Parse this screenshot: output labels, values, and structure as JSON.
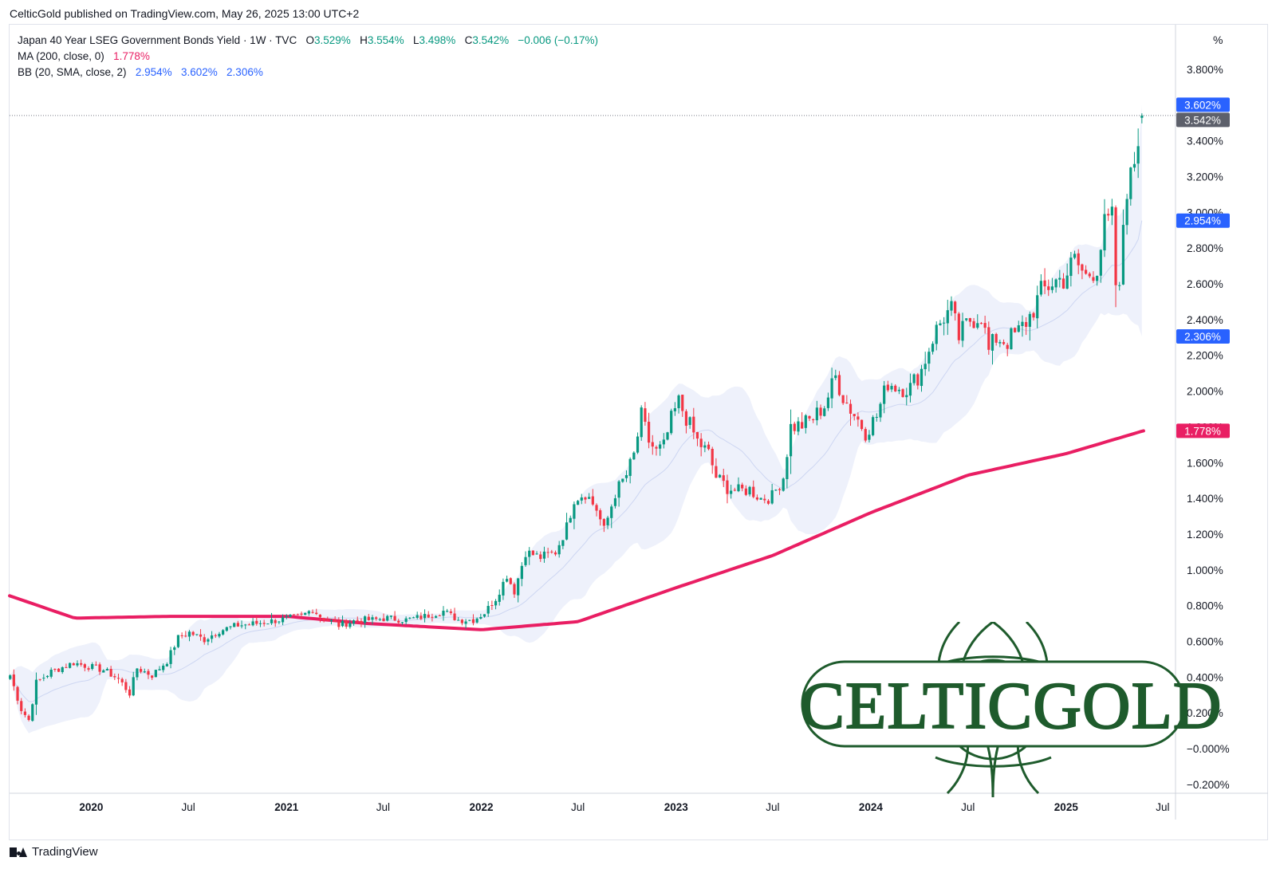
{
  "publisher_line": "CelticGold published on TradingView.com, May 26, 2025 13:00 UTC+2",
  "legend": {
    "title": "Japan 40 Year LSEG Government Bonds Yield · 1W · TVC",
    "open_label": "O",
    "open": "3.529%",
    "high_label": "H",
    "high": "3.554%",
    "low_label": "L",
    "low": "3.498%",
    "close_label": "C",
    "close": "3.542%",
    "change": "−0.006 (−0.17%)",
    "ma_label": "MA (200, close, 0)",
    "ma_value": "1.778%",
    "bb_label": "BB (20, SMA, close, 2)",
    "bb_basis": "2.954%",
    "bb_upper": "3.602%",
    "bb_lower": "2.306%"
  },
  "scale_button": "%",
  "footer_brand": "TradingView",
  "logo_text": "CELTICGOLD",
  "colors": {
    "up": "#089981",
    "down": "#f23645",
    "ma": "#e91e63",
    "bb_fill": "#eef1fb",
    "bb_line": "#cdd6f2",
    "badge_blue": "#2962ff",
    "badge_gray": "#5d606b",
    "badge_pink": "#e91e63",
    "logo_green": "#1e5b2c"
  },
  "chart_data": {
    "type": "candlestick",
    "title": "Japan 40 Year LSEG Government Bonds Yield",
    "interval": "1W",
    "y_unit": "%",
    "ylim": [
      -0.25,
      4.05
    ],
    "x_range": [
      "2019-08-01",
      "2025-07-25"
    ],
    "y_ticks": [
      "3.800%",
      "3.600%",
      "3.400%",
      "3.200%",
      "3.000%",
      "2.800%",
      "2.600%",
      "2.400%",
      "2.200%",
      "2.000%",
      "1.800%",
      "1.600%",
      "1.400%",
      "1.200%",
      "1.000%",
      "0.800%",
      "0.600%",
      "0.400%",
      "0.200%",
      "−0.000%",
      "−0.200%"
    ],
    "x_ticks": [
      {
        "label": "2020",
        "date": "2020-01-01",
        "bold": true
      },
      {
        "label": "Jul",
        "date": "2020-07-01",
        "bold": false
      },
      {
        "label": "2021",
        "date": "2021-01-01",
        "bold": true
      },
      {
        "label": "Jul",
        "date": "2021-07-01",
        "bold": false
      },
      {
        "label": "2022",
        "date": "2022-01-01",
        "bold": true
      },
      {
        "label": "Jul",
        "date": "2022-07-01",
        "bold": false
      },
      {
        "label": "2023",
        "date": "2023-01-01",
        "bold": true
      },
      {
        "label": "Jul",
        "date": "2023-07-01",
        "bold": false
      },
      {
        "label": "2024",
        "date": "2024-01-01",
        "bold": true
      },
      {
        "label": "Jul",
        "date": "2024-07-01",
        "bold": false
      },
      {
        "label": "2025",
        "date": "2025-01-01",
        "bold": true
      },
      {
        "label": "Jul",
        "date": "2025-07-01",
        "bold": false
      }
    ],
    "price_close_anchors": [
      [
        "2019-08-02",
        0.41
      ],
      [
        "2019-08-23",
        0.22
      ],
      [
        "2019-09-06",
        0.16
      ],
      [
        "2019-09-20",
        0.37
      ],
      [
        "2019-10-18",
        0.43
      ],
      [
        "2019-11-29",
        0.48
      ],
      [
        "2019-12-27",
        0.46
      ],
      [
        "2020-01-24",
        0.44
      ],
      [
        "2020-02-21",
        0.39
      ],
      [
        "2020-03-13",
        0.31
      ],
      [
        "2020-03-27",
        0.45
      ],
      [
        "2020-04-24",
        0.41
      ],
      [
        "2020-05-22",
        0.49
      ],
      [
        "2020-06-12",
        0.62
      ],
      [
        "2020-07-03",
        0.65
      ],
      [
        "2020-07-31",
        0.61
      ],
      [
        "2020-08-28",
        0.66
      ],
      [
        "2020-10-02",
        0.69
      ],
      [
        "2020-11-06",
        0.7
      ],
      [
        "2020-12-18",
        0.72
      ],
      [
        "2021-01-29",
        0.74
      ],
      [
        "2021-02-19",
        0.78
      ],
      [
        "2021-03-05",
        0.74
      ],
      [
        "2021-04-09",
        0.69
      ],
      [
        "2021-05-14",
        0.72
      ],
      [
        "2021-06-11",
        0.72
      ],
      [
        "2021-07-09",
        0.73
      ],
      [
        "2021-08-13",
        0.72
      ],
      [
        "2021-09-17",
        0.74
      ],
      [
        "2021-10-22",
        0.77
      ],
      [
        "2021-11-19",
        0.72
      ],
      [
        "2021-12-17",
        0.72
      ],
      [
        "2022-01-07",
        0.76
      ],
      [
        "2022-01-28",
        0.84
      ],
      [
        "2022-02-18",
        0.97
      ],
      [
        "2022-03-04",
        0.88
      ],
      [
        "2022-03-25",
        1.1
      ],
      [
        "2022-04-22",
        1.07
      ],
      [
        "2022-05-20",
        1.1
      ],
      [
        "2022-06-10",
        1.24
      ],
      [
        "2022-06-24",
        1.4
      ],
      [
        "2022-07-15",
        1.43
      ],
      [
        "2022-08-05",
        1.34
      ],
      [
        "2022-08-19",
        1.22
      ],
      [
        "2022-09-09",
        1.43
      ],
      [
        "2022-09-30",
        1.53
      ],
      [
        "2022-10-14",
        1.64
      ],
      [
        "2022-10-28",
        1.86
      ],
      [
        "2022-11-11",
        1.72
      ],
      [
        "2022-11-25",
        1.66
      ],
      [
        "2022-12-09",
        1.69
      ],
      [
        "2022-12-23",
        1.84
      ],
      [
        "2023-01-06",
        1.94
      ],
      [
        "2023-01-20",
        1.85
      ],
      [
        "2023-02-10",
        1.72
      ],
      [
        "2023-03-03",
        1.65
      ],
      [
        "2023-03-17",
        1.52
      ],
      [
        "2023-04-07",
        1.46
      ],
      [
        "2023-04-28",
        1.44
      ],
      [
        "2023-05-19",
        1.45
      ],
      [
        "2023-06-09",
        1.4
      ],
      [
        "2023-06-30",
        1.41
      ],
      [
        "2023-07-21",
        1.52
      ],
      [
        "2023-08-04",
        1.8
      ],
      [
        "2023-08-25",
        1.81
      ],
      [
        "2023-09-15",
        1.85
      ],
      [
        "2023-10-06",
        1.92
      ],
      [
        "2023-10-27",
        2.08
      ],
      [
        "2023-11-10",
        1.97
      ],
      [
        "2023-11-24",
        1.9
      ],
      [
        "2023-12-08",
        1.84
      ],
      [
        "2023-12-22",
        1.77
      ],
      [
        "2024-01-12",
        1.86
      ],
      [
        "2024-02-02",
        2.05
      ],
      [
        "2024-02-23",
        2.02
      ],
      [
        "2024-03-15",
        2.02
      ],
      [
        "2024-04-05",
        2.12
      ],
      [
        "2024-04-26",
        2.3
      ],
      [
        "2024-05-17",
        2.42
      ],
      [
        "2024-05-31",
        2.45
      ],
      [
        "2024-06-14",
        2.3
      ],
      [
        "2024-07-05",
        2.4
      ],
      [
        "2024-07-26",
        2.43
      ],
      [
        "2024-08-09",
        2.22
      ],
      [
        "2024-08-23",
        2.3
      ],
      [
        "2024-09-13",
        2.28
      ],
      [
        "2024-10-04",
        2.33
      ],
      [
        "2024-10-25",
        2.42
      ],
      [
        "2024-11-15",
        2.55
      ],
      [
        "2024-12-06",
        2.61
      ],
      [
        "2024-12-27",
        2.63
      ],
      [
        "2025-01-17",
        2.73
      ],
      [
        "2025-02-07",
        2.64
      ],
      [
        "2025-02-28",
        2.7
      ],
      [
        "2025-03-14",
        2.92
      ],
      [
        "2025-03-28",
        2.96
      ],
      [
        "2025-04-04",
        2.6
      ],
      [
        "2025-04-11",
        2.54
      ],
      [
        "2025-04-18",
        2.94
      ],
      [
        "2025-04-25",
        3.15
      ],
      [
        "2025-05-02",
        3.18
      ],
      [
        "2025-05-09",
        3.3
      ],
      [
        "2025-05-16",
        3.42
      ],
      [
        "2025-05-23",
        3.53
      ],
      [
        "2025-05-26",
        3.542
      ]
    ],
    "ma200_anchors": [
      [
        "2019-08-01",
        0.855
      ],
      [
        "2019-12-01",
        0.73
      ],
      [
        "2020-06-01",
        0.74
      ],
      [
        "2021-01-01",
        0.74
      ],
      [
        "2021-06-01",
        0.7
      ],
      [
        "2022-01-01",
        0.665
      ],
      [
        "2022-07-01",
        0.71
      ],
      [
        "2023-01-01",
        0.9
      ],
      [
        "2023-07-01",
        1.08
      ],
      [
        "2024-01-01",
        1.32
      ],
      [
        "2024-07-01",
        1.53
      ],
      [
        "2025-01-01",
        1.65
      ],
      [
        "2025-05-26",
        1.778
      ]
    ],
    "bollinger": {
      "upper_last": 3.602,
      "basis_last": 2.954,
      "lower_last": 2.306
    },
    "last_values": {
      "upper": "3.602%",
      "close": "3.542%",
      "basis": "2.954%",
      "lower": "2.306%",
      "ma": "1.778%"
    }
  }
}
